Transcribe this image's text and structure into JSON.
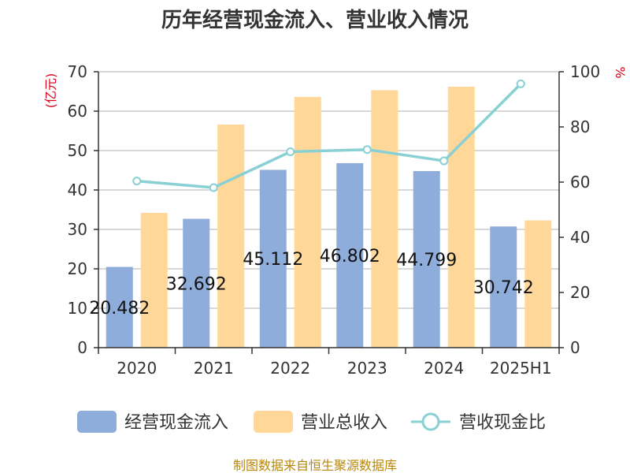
{
  "chart_data": {
    "type": "bar",
    "title": "历年经营现金流入、营业收入情况",
    "categories": [
      "2020",
      "2021",
      "2022",
      "2023",
      "2024",
      "2025H1"
    ],
    "series": [
      {
        "name": "经营现金流入",
        "type": "bar",
        "axis": "left",
        "color": "#8eaddb",
        "values": [
          20.482,
          32.692,
          45.112,
          46.802,
          44.799,
          30.742
        ],
        "labels": [
          "20.482",
          "32.692",
          "45.112",
          "46.802",
          "44.799",
          "30.742"
        ]
      },
      {
        "name": "营业总收入",
        "type": "bar",
        "axis": "left",
        "color": "#ffd899",
        "values": [
          34.2,
          56.6,
          63.6,
          65.3,
          66.2,
          32.3
        ]
      },
      {
        "name": "营收现金比",
        "type": "line",
        "axis": "right",
        "color": "#88d0d4",
        "values": [
          60.4,
          58.0,
          71.0,
          71.8,
          67.7,
          95.6
        ]
      }
    ],
    "y_left": {
      "label": "(亿元)",
      "ylim": [
        0,
        70
      ],
      "ticks": [
        "0",
        "10",
        "20",
        "30",
        "40",
        "50",
        "60",
        "70"
      ]
    },
    "y_right": {
      "label": "%",
      "ylim": [
        0,
        100
      ],
      "ticks": [
        "0",
        "20",
        "40",
        "60",
        "80",
        "100"
      ]
    },
    "grid": true,
    "legend_position": "bottom"
  },
  "footer": "制图数据来自恒生聚源数据库"
}
